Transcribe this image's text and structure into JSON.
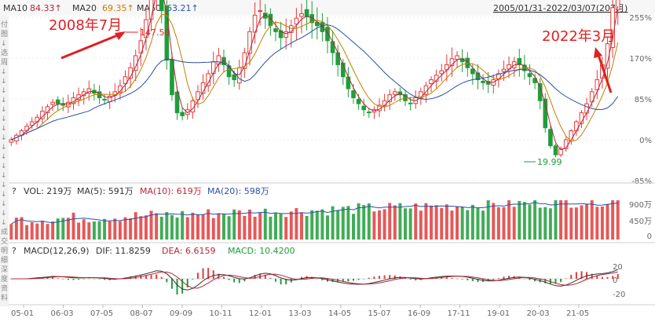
{
  "header": {
    "ma10_label": "MA10",
    "ma10_value": "84.33↑",
    "ma20_label": "MA20",
    "ma20_value": "69.35↑",
    "ma60_label": "MA60",
    "ma60_value": "63.21↑",
    "range": "2005/01/31-2022/03/07(207月)"
  },
  "annotations": {
    "left": "2008年7月",
    "right": "2022年3月",
    "high": "147.50",
    "low": "19.99"
  },
  "left_strip_chars": [
    "付",
    "图",
    "↓",
    "选",
    "周",
    "↓",
    "↓",
    "↓",
    "↓",
    "↓",
    "↓",
    "↓",
    "↓",
    "↓",
    "↓",
    "↓",
    "↓",
    "↓",
    "↓",
    "↓",
    "↓",
    "↓",
    "成",
    "交",
    "明",
    "细",
    "深",
    "度",
    "资",
    "料"
  ],
  "price_axis": [
    "255%",
    "170%",
    "85%",
    "0%",
    "-85%"
  ],
  "vol": {
    "prefix": "?",
    "vol_label": "VOL: 219万",
    "ma5_label": "MA(5): 591万",
    "ma10_label": "MA(10): 619万",
    "ma20_label": "MA(20): 598万",
    "axis": [
      "900万",
      "450万",
      "0"
    ]
  },
  "macd": {
    "prefix": "?",
    "params": "MACD(12,26,9)",
    "dif_label": "DIF: 11.8259",
    "dea_label": "DEA: 6.6159",
    "macd_label": "MACD: 10.4200",
    "axis": [
      "20",
      "0",
      "-20"
    ]
  },
  "x_axis": [
    "05-01",
    "06-03",
    "07-05",
    "08-07",
    "09-09",
    "10-11",
    "12-01",
    "13-03",
    "14-05",
    "15-07",
    "16-09",
    "17-11",
    "19-01",
    "20-03",
    "21-05"
  ],
  "colors": {
    "up": "#e23b3b",
    "down": "#1f9e3a",
    "ma10": "#b5273a",
    "ma20": "#cc7a00",
    "ma60": "#2b4fa8",
    "annot": "#e02020"
  },
  "chart_data": {
    "type": "candlestick",
    "title": "",
    "x_axis_ticks": [
      "05-01",
      "06-03",
      "07-05",
      "08-07",
      "09-09",
      "10-11",
      "12-01",
      "13-03",
      "14-05",
      "15-07",
      "16-09",
      "17-11",
      "19-01",
      "20-03",
      "21-05"
    ],
    "monthly_close_estimate": [
      32,
      35,
      38,
      41,
      44,
      47,
      51,
      54,
      57,
      56,
      55,
      57,
      60,
      62,
      64,
      66,
      63,
      60,
      59,
      61,
      64,
      68,
      74,
      80,
      88,
      98,
      112,
      130,
      147,
      118,
      85,
      62,
      50,
      48,
      52,
      58,
      64,
      70,
      76,
      84,
      88,
      82,
      74,
      72,
      80,
      90,
      104,
      115,
      118,
      113,
      108,
      104,
      100,
      104,
      108,
      113,
      116,
      114,
      110,
      108,
      104,
      98,
      90,
      82,
      74,
      66,
      60,
      56,
      52,
      50,
      52,
      55,
      58,
      62,
      64,
      62,
      58,
      56,
      60,
      64,
      68,
      72,
      75,
      78,
      82,
      86,
      88,
      84,
      80,
      76,
      72,
      70,
      69,
      72,
      76,
      79,
      82,
      84,
      82,
      78,
      74,
      70,
      58,
      40,
      28,
      22,
      26,
      32,
      38,
      44,
      50,
      56,
      64,
      72,
      82,
      96,
      120,
      147
    ],
    "ylim_percent": [
      -85,
      255
    ],
    "annotations": [
      {
        "label": "147.50",
        "type": "high"
      },
      {
        "label": "19.99",
        "type": "low"
      }
    ],
    "indicators": {
      "MA10": 84.33,
      "MA20": 69.35,
      "MA60": 63.21,
      "VOL": "219万",
      "VOL_MA5": "591万",
      "VOL_MA10": "619万",
      "VOL_MA20": "598万",
      "DIF": 11.8259,
      "DEA": 6.6159,
      "MACD": 10.42
    },
    "vol_axis": [
      "0",
      "450万",
      "900万"
    ],
    "macd_axis": [
      -20,
      0,
      20
    ]
  }
}
